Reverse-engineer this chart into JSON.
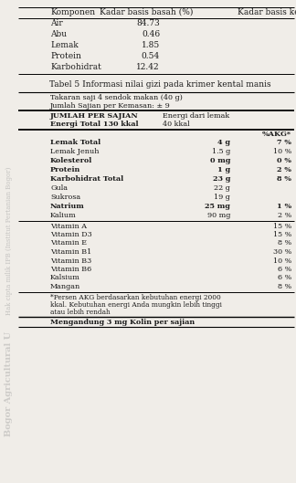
{
  "table4_headers": [
    "Komponen",
    "Kadar basis basah (%)",
    "Kadar basis kering"
  ],
  "table4_rows": [
    [
      "Air",
      "84.73",
      ""
    ],
    [
      "Abu",
      "0.46",
      ""
    ],
    [
      "Lemak",
      "1.85",
      ""
    ],
    [
      "Protein",
      "0.54",
      ""
    ],
    [
      "Karbohidrat",
      "12.42",
      ""
    ]
  ],
  "title_table5": "Tabel 5 Informasi nilai gizi pada krimer kental manis",
  "serving_info": [
    "Takaran saji 4 sendok makan (40 g)",
    "Jumlah Sajian per Kemasan: ± 9"
  ],
  "jumlah_bold": "JUMLAH PER SAJIAN",
  "energi_dari_lemak": "Energi dari lemak",
  "energi_total_bold": "Energi Total 130 kkal",
  "energi_total_value": "40 kkal",
  "akg_header": "%AKG*",
  "nutrisi_rows": [
    {
      "name": "Lemak Total",
      "bold": true,
      "amount": "4 g",
      "akg": "7 %"
    },
    {
      "name": "Lemak Jenuh",
      "bold": false,
      "amount": "1.5 g",
      "akg": "10 %"
    },
    {
      "name": "Kolesterol",
      "bold": true,
      "amount": "0 mg",
      "akg": "0 %"
    },
    {
      "name": "Protein",
      "bold": true,
      "amount": "1 g",
      "akg": "2 %"
    },
    {
      "name": "Karbohidrat Total",
      "bold": true,
      "amount": "23 g",
      "akg": "8 %"
    },
    {
      "name": "Gula",
      "bold": false,
      "amount": "22 g",
      "akg": ""
    },
    {
      "name": "Sukrosa",
      "bold": false,
      "amount": "19 g",
      "akg": ""
    },
    {
      "name": "Natrium",
      "bold": true,
      "amount": "25 mg",
      "akg": "1 %"
    },
    {
      "name": "Kalium",
      "bold": false,
      "amount": "90 mg",
      "akg": "2 %"
    }
  ],
  "vitamin_rows": [
    {
      "name": "Vitamin A",
      "akg": "15 %"
    },
    {
      "name": "Vitamin D3",
      "akg": "15 %"
    },
    {
      "name": "Vitamin E",
      "akg": "8 %"
    },
    {
      "name": "Vitamin B1",
      "akg": "30 %"
    },
    {
      "name": "Vitamin B3",
      "akg": "10 %"
    },
    {
      "name": "Vitamin B6",
      "akg": "6 %"
    },
    {
      "name": "Kalsium",
      "akg": "6 %"
    },
    {
      "name": "Mangan",
      "akg": "8 %"
    }
  ],
  "footnote_lines": [
    "*Persen AKG berdasarkan kebutuhan energi 2000",
    "kkal. Kebutuhan energi Anda mungkin lebih tinggi",
    "atau lebih rendah"
  ],
  "bottom_bold": "Mengandung 3 mg Kolin per sajian",
  "sidebar_top": "Hak cipta milik IPB (Institut Pertanian Bogor)",
  "sidebar_bottom": "Bogor Agricultural U",
  "bg_color": "#f0ede8",
  "text_color": "#1a1a1a",
  "sidebar_color": "#999999"
}
